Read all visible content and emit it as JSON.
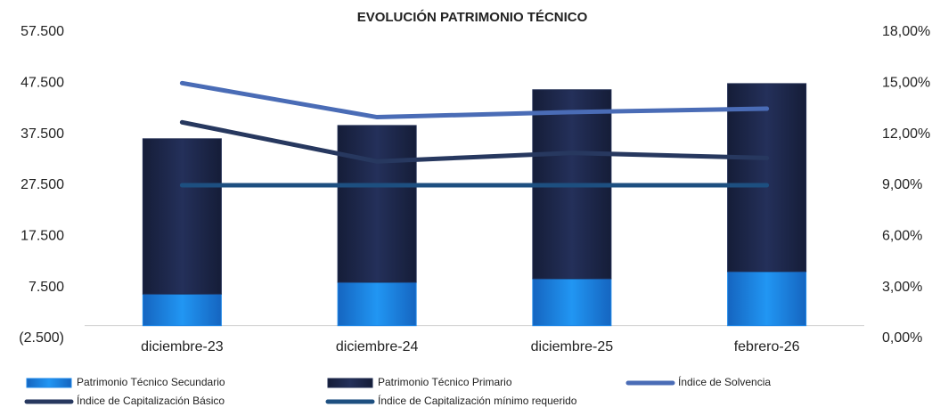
{
  "chart_data": {
    "type": "bar",
    "title": "EVOLUCIÓN PATRIMONIO TÉCNICO",
    "categories": [
      "diciembre-23",
      "diciembre-24",
      "diciembre-25",
      "febrero-26"
    ],
    "series": [
      {
        "name": "Patrimonio Técnico Secundario",
        "color": "#1e88e8",
        "type": "bar",
        "values": [
          6200,
          8500,
          9200,
          10600
        ]
      },
      {
        "name": "Patrimonio Técnico Primario",
        "color": "#1f2b50",
        "type": "bar",
        "values": [
          30400,
          30700,
          37000,
          36800
        ]
      },
      {
        "name": "Índice de Solvencia",
        "color": "#4a6cb6",
        "type": "line",
        "axis": "y2",
        "values": [
          15.0,
          13.0,
          13.3,
          13.5
        ]
      },
      {
        "name": "Índice de Capitalización Básico",
        "color": "#27385f",
        "type": "line",
        "axis": "y2",
        "values": [
          12.7,
          10.4,
          10.9,
          10.6
        ]
      },
      {
        "name": "Índice de Capitalización mínimo requerido",
        "color": "#1d4f80",
        "type": "line",
        "axis": "y2",
        "values": [
          9.0,
          9.0,
          9.0,
          9.0
        ]
      }
    ],
    "ylim": [
      -2500,
      57500
    ],
    "yticks": [
      {
        "value": -2500,
        "label": "(2.500)"
      },
      {
        "value": 7500,
        "label": "7.500"
      },
      {
        "value": 17500,
        "label": "17.500"
      },
      {
        "value": 27500,
        "label": "27.500"
      },
      {
        "value": 37500,
        "label": "37.500"
      },
      {
        "value": 47500,
        "label": "47.500"
      },
      {
        "value": 57500,
        "label": "57.500"
      }
    ],
    "y2lim": [
      0,
      18
    ],
    "y2ticks": [
      {
        "value": 0,
        "label": "0,00%"
      },
      {
        "value": 3,
        "label": "3,00%"
      },
      {
        "value": 6,
        "label": "6,00%"
      },
      {
        "value": 9,
        "label": "9,00%"
      },
      {
        "value": 12,
        "label": "12,00%"
      },
      {
        "value": 15,
        "label": "15,00%"
      },
      {
        "value": 18,
        "label": "18,00%"
      }
    ],
    "grid": false
  }
}
